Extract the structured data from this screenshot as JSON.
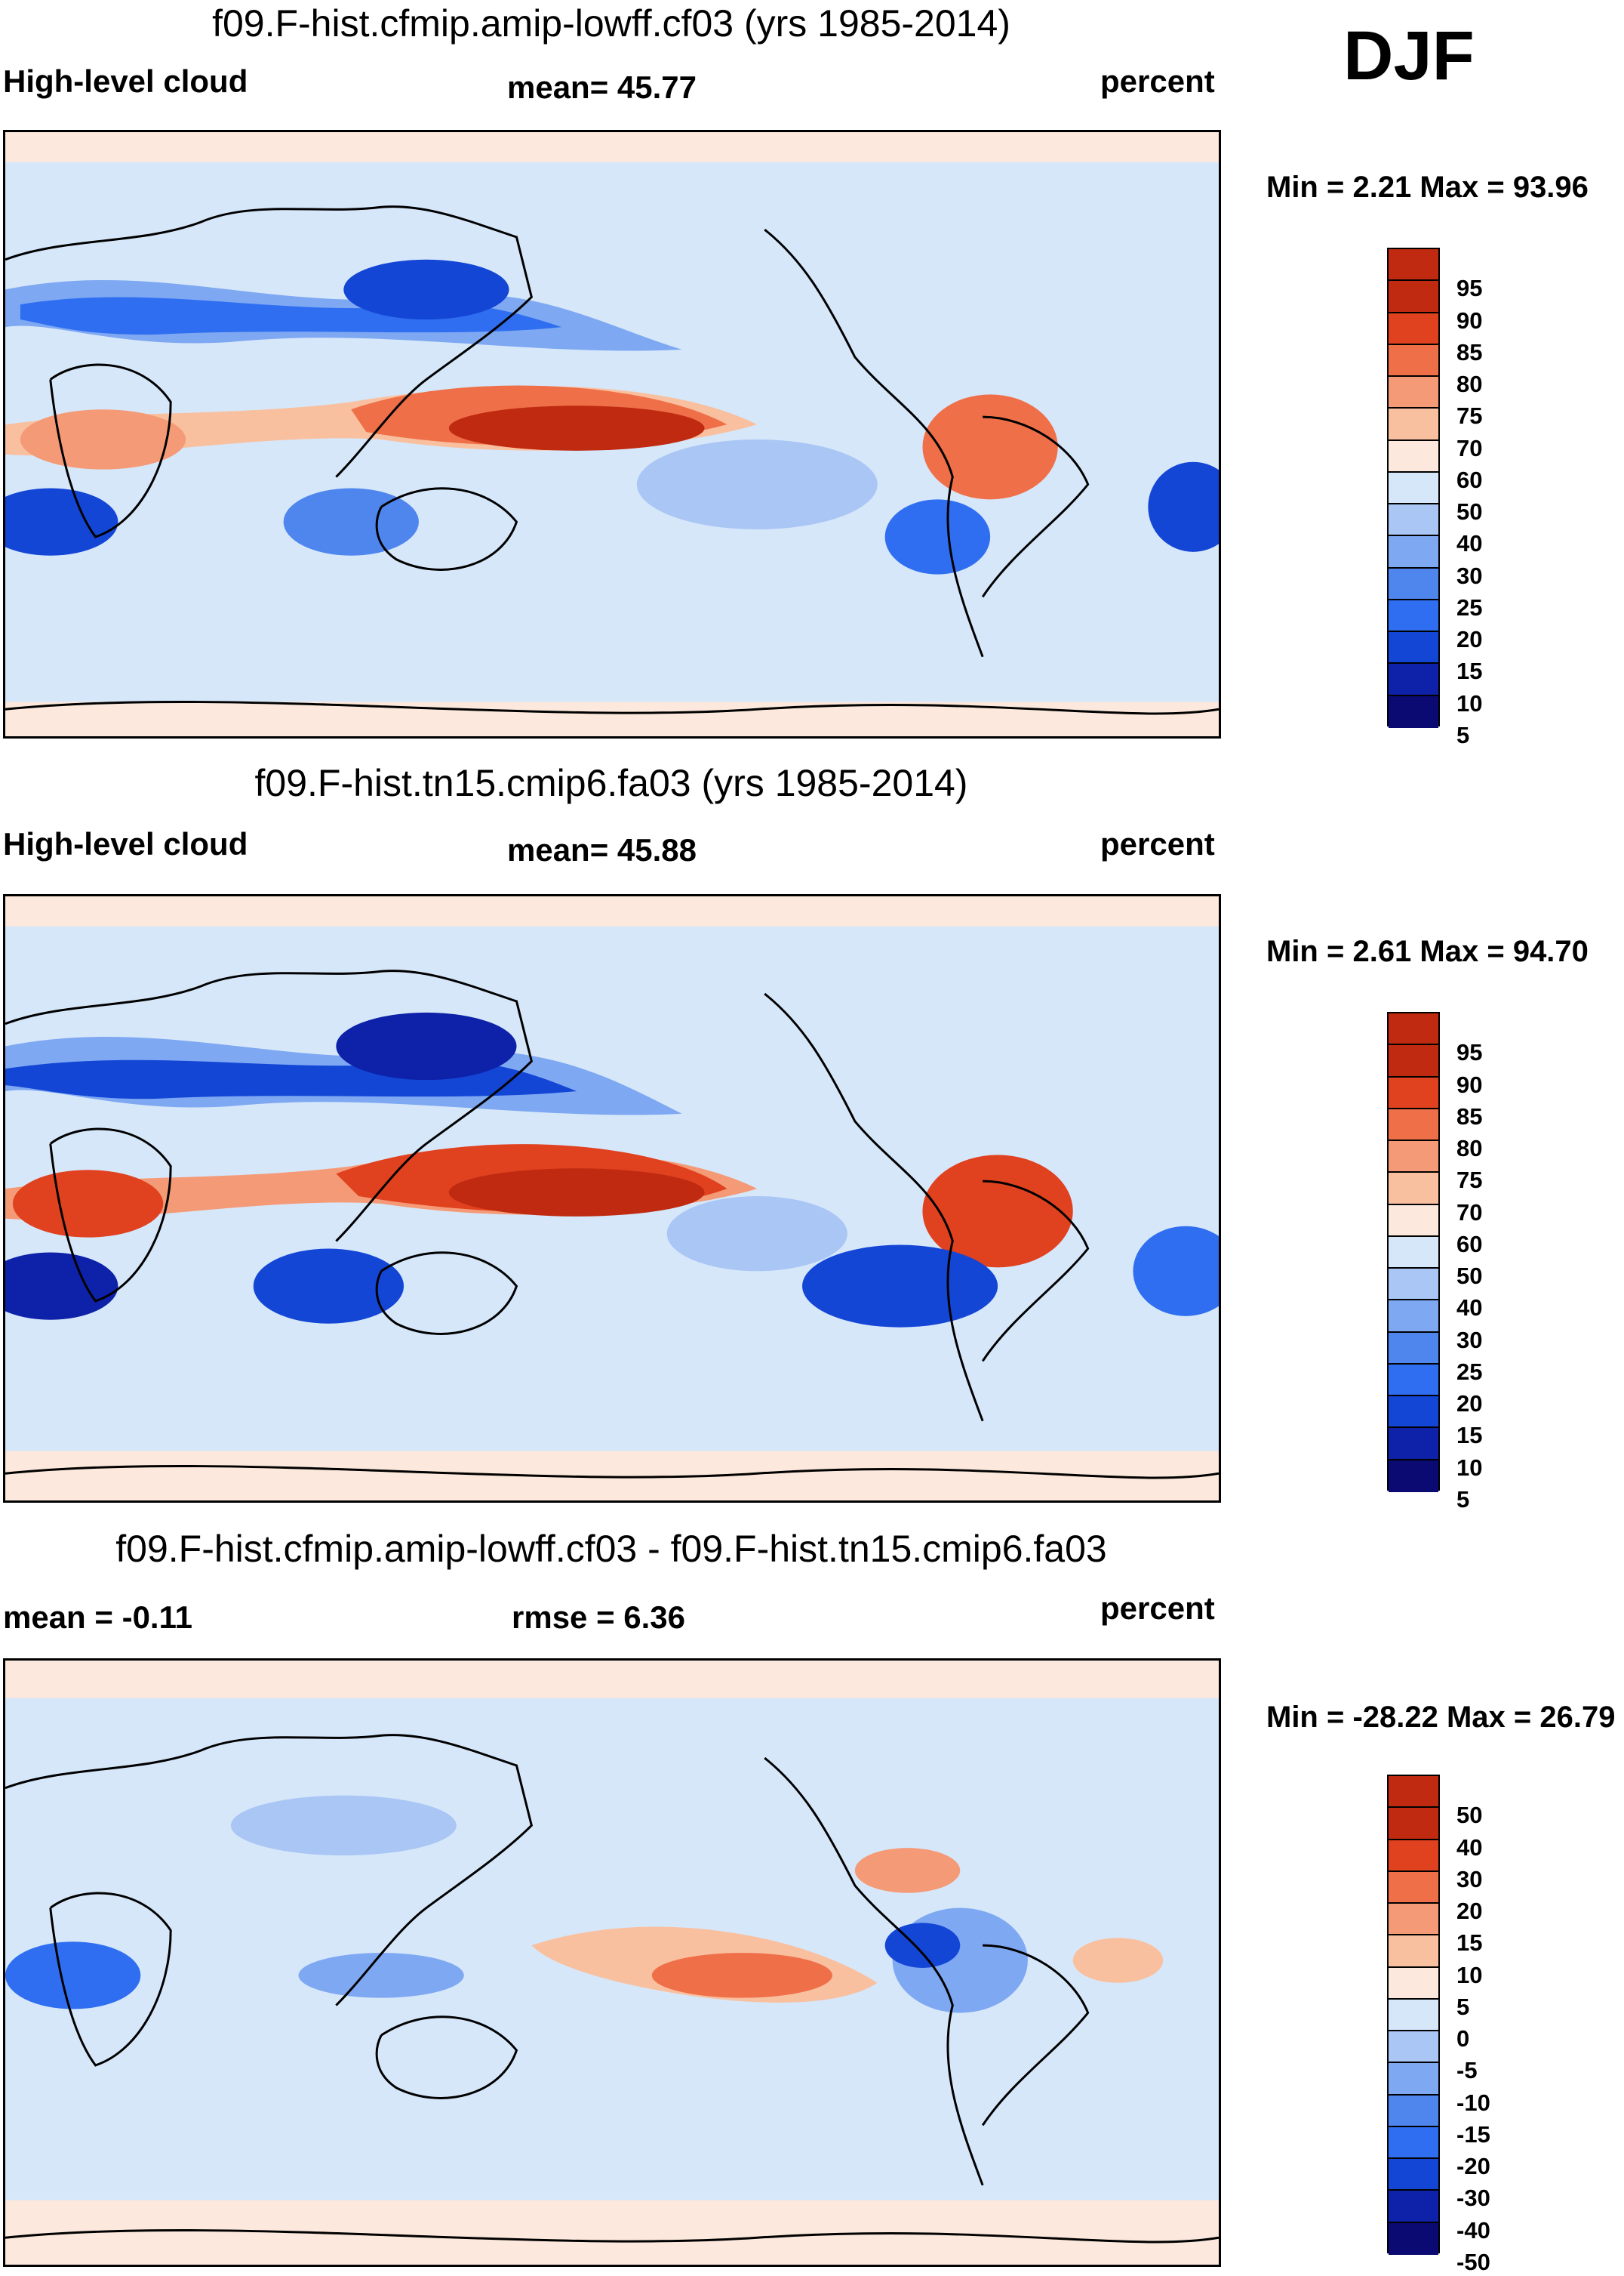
{
  "season": "DJF",
  "colors": {
    "abs": [
      "#0b0a72",
      "#0d22a8",
      "#1446d6",
      "#2f6ef0",
      "#4f86ee",
      "#7ea8f2",
      "#a9c6f4",
      "#d6e7fa",
      "#fce8dc",
      "#f9c0a0",
      "#f59a76",
      "#ef6f48",
      "#e0411f",
      "#bf2a10",
      "#8f130a"
    ],
    "diff": [
      "#0b0a72",
      "#0d22a8",
      "#1446d6",
      "#2f6ef0",
      "#4f86ee",
      "#7ea8f2",
      "#a9c6f4",
      "#d6e7fa",
      "#fce8dc",
      "#f9c0a0",
      "#f59a76",
      "#ef6f48",
      "#e0411f",
      "#bf2a10",
      "#8f130a"
    ]
  },
  "panels": [
    {
      "title": "f09.F-hist.cfmip.amip-lowff.cf03 (yrs 1985-2014)",
      "left_label": "High-level cloud",
      "center_label": "mean=  45.77",
      "right_label": "percent",
      "minmax": "Min =   2.21 Max =  93.96",
      "ticks": [
        "95",
        "90",
        "85",
        "80",
        "75",
        "70",
        "60",
        "50",
        "40",
        "30",
        "25",
        "20",
        "15",
        "10",
        "5"
      ]
    },
    {
      "title": "f09.F-hist.tn15.cmip6.fa03 (yrs 1985-2014)",
      "left_label": "High-level cloud",
      "center_label": "mean=  45.88",
      "right_label": "percent",
      "minmax": "Min =   2.61 Max =  94.70",
      "ticks": [
        "95",
        "90",
        "85",
        "80",
        "75",
        "70",
        "60",
        "50",
        "40",
        "30",
        "25",
        "20",
        "15",
        "10",
        "5"
      ]
    },
    {
      "title": "f09.F-hist.cfmip.amip-lowff.cf03 - f09.F-hist.tn15.cmip6.fa03",
      "left_label": "mean =  -0.11",
      "center_label": "rmse =    6.36",
      "right_label": "percent",
      "minmax": "Min = -28.22 Max =  26.79",
      "ticks": [
        "50",
        "40",
        "30",
        "20",
        "15",
        "10",
        "5",
        "0",
        "-5",
        "-10",
        "-15",
        "-20",
        "-30",
        "-40",
        "-50"
      ]
    }
  ]
}
